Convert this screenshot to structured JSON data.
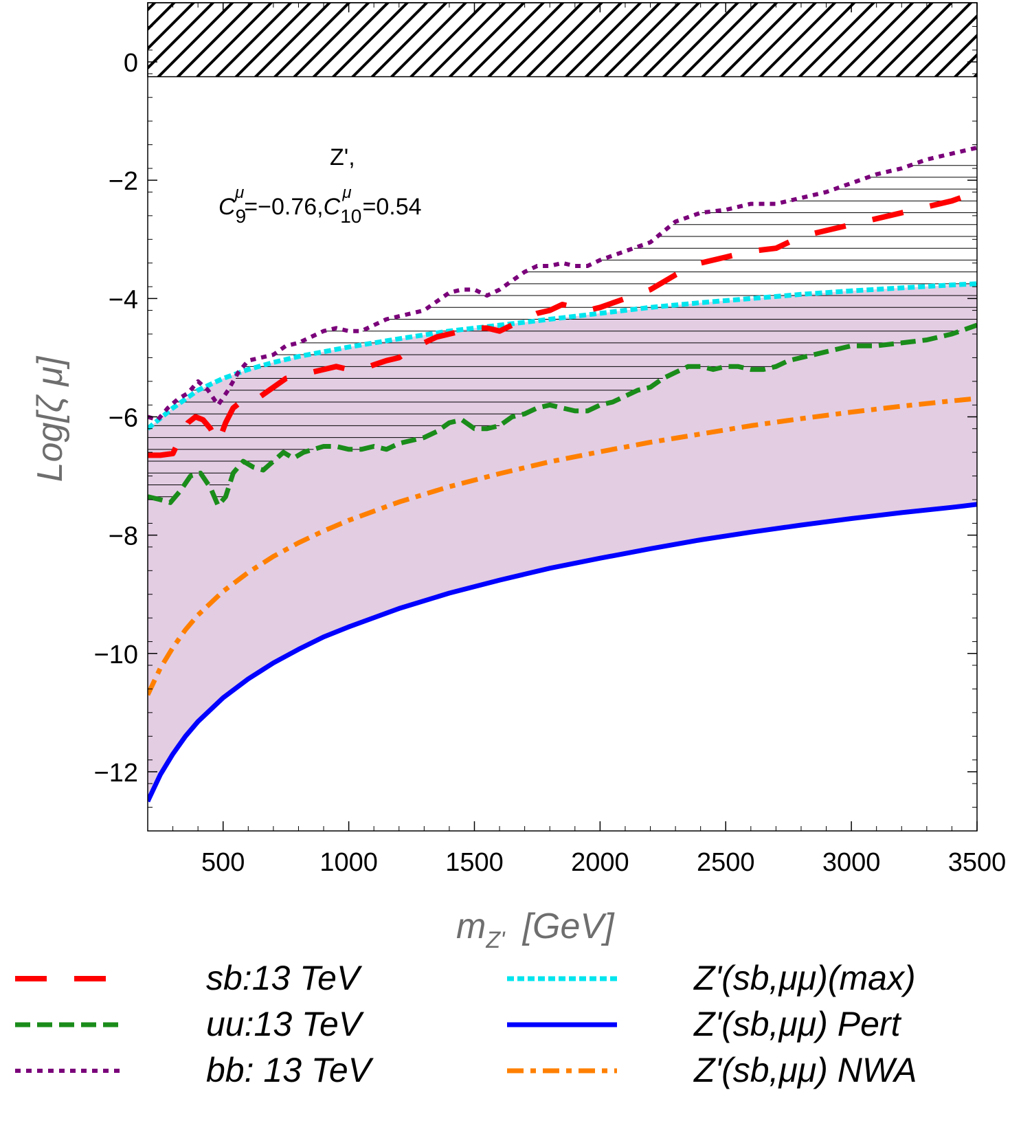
{
  "chart_data": {
    "type": "line",
    "xlabel_main": "m",
    "xlabel_sub": "Z'",
    "xlabel_unit": "[GeV]",
    "ylabel": "Log[ζ μ]",
    "xlim": [
      200,
      3500
    ],
    "ylim": [
      -13,
      1
    ],
    "x_ticks": [
      500,
      1000,
      1500,
      2000,
      2500,
      3000,
      3500
    ],
    "y_ticks": [
      -12,
      -10,
      -8,
      -6,
      -4,
      -2,
      0
    ],
    "x_tick_labels": [
      "500",
      "1000",
      "1500",
      "2000",
      "2500",
      "3000",
      "3500"
    ],
    "y_tick_labels": [
      "−12",
      "−10",
      "−8",
      "−6",
      "−4",
      "−2",
      "0"
    ],
    "annotation": {
      "line1": "Z',",
      "c9_label": "C",
      "c9_sub": "9",
      "c9_sup": "μ",
      "c9_value": "=−0.76,",
      "c10_label": "C",
      "c10_sub": "10",
      "c10_sup": "μ",
      "c10_value": "=0.54"
    },
    "excluded_region": {
      "y_from": -0.25,
      "y_to": 1,
      "style": "diagonal-hatch"
    },
    "shaded_band_color": "#e3cde3",
    "grid": false,
    "legend_position": "bottom",
    "series": [
      {
        "name": "sb:13 TeV",
        "color": "#ff0000",
        "style": "long-dash",
        "x": [
          200,
          250,
          300,
          330,
          360,
          390,
          420,
          450,
          480,
          510,
          540,
          570,
          600,
          650,
          700,
          750,
          800,
          850,
          900,
          950,
          1000,
          1050,
          1100,
          1150,
          1200,
          1250,
          1300,
          1350,
          1400,
          1450,
          1500,
          1550,
          1600,
          1650,
          1700,
          1750,
          1800,
          1850,
          1900,
          1950,
          2000,
          2100,
          2200,
          2300,
          2400,
          2500,
          2600,
          2700,
          2800,
          2900,
          3000,
          3100,
          3200,
          3300,
          3400,
          3500
        ],
        "y": [
          -6.65,
          -6.65,
          -6.62,
          -6.35,
          -6.1,
          -6.0,
          -6.05,
          -6.2,
          -6.45,
          -6.1,
          -5.85,
          -5.75,
          -5.8,
          -5.65,
          -5.5,
          -5.35,
          -5.3,
          -5.25,
          -5.2,
          -5.15,
          -5.2,
          -5.2,
          -5.12,
          -5.05,
          -5.0,
          -4.85,
          -4.75,
          -4.65,
          -4.6,
          -4.55,
          -4.5,
          -4.5,
          -4.55,
          -4.45,
          -4.35,
          -4.25,
          -4.2,
          -4.1,
          -4.15,
          -4.2,
          -4.15,
          -4.0,
          -3.85,
          -3.6,
          -3.4,
          -3.3,
          -3.2,
          -3.15,
          -2.95,
          -2.85,
          -2.75,
          -2.65,
          -2.55,
          -2.45,
          -2.35,
          -2.2
        ]
      },
      {
        "name": "uu:13 TeV",
        "color": "#1a8c1a",
        "style": "dash",
        "x": [
          200,
          250,
          290,
          330,
          370,
          410,
          450,
          480,
          510,
          540,
          580,
          620,
          660,
          700,
          740,
          780,
          820,
          860,
          900,
          950,
          1000,
          1050,
          1100,
          1150,
          1200,
          1250,
          1300,
          1350,
          1400,
          1450,
          1500,
          1550,
          1600,
          1650,
          1700,
          1750,
          1800,
          1850,
          1900,
          1950,
          2000,
          2050,
          2100,
          2150,
          2200,
          2250,
          2300,
          2350,
          2400,
          2450,
          2500,
          2550,
          2600,
          2650,
          2700,
          2750,
          2800,
          2850,
          2900,
          2950,
          3000,
          3100,
          3200,
          3300,
          3400,
          3500
        ],
        "y": [
          -7.35,
          -7.4,
          -7.45,
          -7.25,
          -7.0,
          -6.95,
          -7.2,
          -7.5,
          -7.35,
          -6.95,
          -6.75,
          -6.85,
          -6.9,
          -6.75,
          -6.6,
          -6.7,
          -6.6,
          -6.55,
          -6.5,
          -6.5,
          -6.55,
          -6.55,
          -6.5,
          -6.55,
          -6.45,
          -6.4,
          -6.35,
          -6.25,
          -6.1,
          -6.05,
          -6.2,
          -6.2,
          -6.15,
          -6.0,
          -5.95,
          -5.85,
          -5.8,
          -5.85,
          -5.9,
          -5.9,
          -5.8,
          -5.75,
          -5.65,
          -5.55,
          -5.5,
          -5.35,
          -5.25,
          -5.15,
          -5.15,
          -5.2,
          -5.15,
          -5.15,
          -5.2,
          -5.2,
          -5.15,
          -5.05,
          -5.0,
          -4.95,
          -4.9,
          -4.85,
          -4.8,
          -4.8,
          -4.75,
          -4.7,
          -4.6,
          -4.45
        ]
      },
      {
        "name": "bb: 13 TeV",
        "color": "#7a007a",
        "style": "dot",
        "x": [
          200,
          240,
          280,
          320,
          360,
          400,
          440,
          480,
          520,
          560,
          600,
          650,
          700,
          750,
          800,
          850,
          900,
          950,
          1000,
          1050,
          1100,
          1150,
          1200,
          1250,
          1300,
          1350,
          1400,
          1450,
          1500,
          1550,
          1600,
          1650,
          1700,
          1750,
          1800,
          1850,
          1900,
          1950,
          2000,
          2100,
          2200,
          2300,
          2400,
          2500,
          2600,
          2700,
          2800,
          2900,
          3000,
          3100,
          3200,
          3300,
          3400,
          3500
        ],
        "y": [
          -6.0,
          -6.05,
          -5.85,
          -5.7,
          -5.6,
          -5.4,
          -5.55,
          -5.8,
          -5.55,
          -5.25,
          -5.05,
          -5.0,
          -4.95,
          -4.8,
          -4.75,
          -4.65,
          -4.55,
          -4.5,
          -4.55,
          -4.55,
          -4.45,
          -4.35,
          -4.3,
          -4.25,
          -4.2,
          -4.05,
          -3.9,
          -3.85,
          -3.85,
          -3.95,
          -3.85,
          -3.7,
          -3.55,
          -3.45,
          -3.45,
          -3.4,
          -3.45,
          -3.45,
          -3.35,
          -3.2,
          -3.05,
          -2.7,
          -2.55,
          -2.5,
          -2.4,
          -2.4,
          -2.3,
          -2.2,
          -2.05,
          -1.9,
          -1.8,
          -1.65,
          -1.55,
          -1.45
        ]
      },
      {
        "name": "Z'(sb,μμ)(max)",
        "color": "#00e5ee",
        "style": "short-dash",
        "x": [
          200,
          300,
          400,
          500,
          600,
          700,
          800,
          900,
          1000,
          1200,
          1400,
          1600,
          1800,
          2000,
          2200,
          2400,
          2600,
          2800,
          3000,
          3200,
          3400,
          3500
        ],
        "y": [
          -6.2,
          -5.85,
          -5.55,
          -5.35,
          -5.2,
          -5.08,
          -4.98,
          -4.9,
          -4.82,
          -4.68,
          -4.55,
          -4.45,
          -4.35,
          -4.25,
          -4.15,
          -4.07,
          -4.0,
          -3.93,
          -3.87,
          -3.82,
          -3.77,
          -3.75
        ]
      },
      {
        "name": "Z'(sb,μμ) Pert",
        "color": "#0000ff",
        "style": "solid",
        "x": [
          200,
          250,
          300,
          350,
          400,
          500,
          600,
          700,
          800,
          900,
          1000,
          1200,
          1400,
          1600,
          1800,
          2000,
          2200,
          2400,
          2600,
          2800,
          3000,
          3200,
          3400,
          3500
        ],
        "y": [
          -12.5,
          -12.05,
          -11.7,
          -11.4,
          -11.15,
          -10.75,
          -10.43,
          -10.16,
          -9.93,
          -9.72,
          -9.55,
          -9.24,
          -8.98,
          -8.76,
          -8.56,
          -8.39,
          -8.23,
          -8.08,
          -7.95,
          -7.83,
          -7.72,
          -7.62,
          -7.53,
          -7.48
        ]
      },
      {
        "name": "Z'(sb,μμ) NWA",
        "color": "#ff8000",
        "style": "dash-dot",
        "x": [
          200,
          250,
          300,
          350,
          400,
          500,
          600,
          700,
          800,
          900,
          1000,
          1200,
          1400,
          1600,
          1800,
          2000,
          2200,
          2400,
          2600,
          2800,
          3000,
          3200,
          3400,
          3500
        ],
        "y": [
          -10.7,
          -10.25,
          -9.9,
          -9.6,
          -9.35,
          -8.95,
          -8.63,
          -8.36,
          -8.13,
          -7.93,
          -7.75,
          -7.44,
          -7.18,
          -6.96,
          -6.76,
          -6.59,
          -6.43,
          -6.29,
          -6.15,
          -6.03,
          -5.92,
          -5.82,
          -5.73,
          -5.69
        ]
      }
    ]
  }
}
